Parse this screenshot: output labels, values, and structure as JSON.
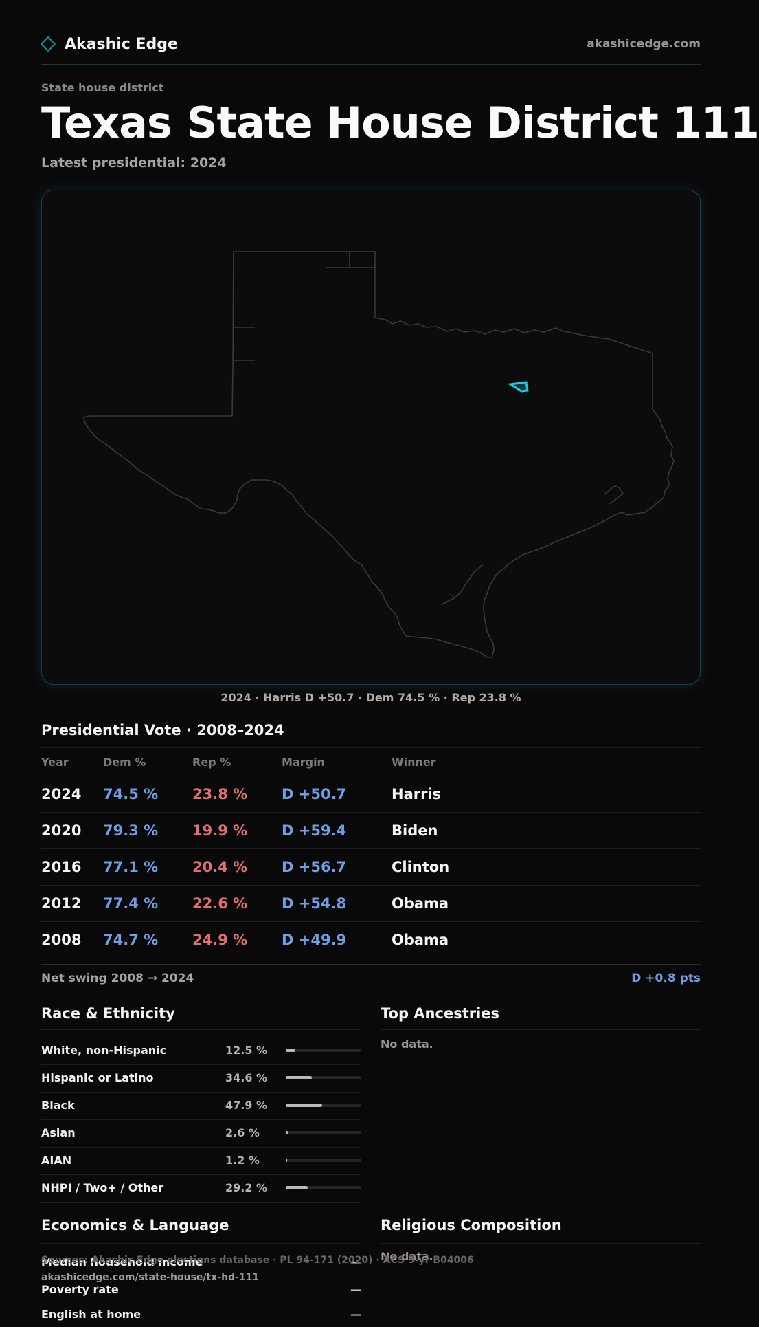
{
  "header": {
    "brand": "Akashic Edge",
    "site": "akashicedge.com"
  },
  "page": {
    "kicker": "State house district",
    "title_state": "Texas",
    "title_district": "State House District 111",
    "subtitle": "Latest presidential: 2024"
  },
  "map": {
    "caption": "2024 · Harris D +50.7 · Dem 74.5 % · Rep 23.8 %",
    "outline_color": "#3a3838",
    "highlight_color": "#1ec8e8"
  },
  "vote_table": {
    "title": "Presidential Vote · 2008–2024",
    "headers": [
      "Year",
      "Dem %",
      "Rep %",
      "Margin",
      "Winner"
    ],
    "rows": [
      {
        "year": "2024",
        "dem": "74.5 %",
        "rep": "23.8 %",
        "margin": "D +50.7",
        "winner": "Harris"
      },
      {
        "year": "2020",
        "dem": "79.3 %",
        "rep": "19.9 %",
        "margin": "D +59.4",
        "winner": "Biden"
      },
      {
        "year": "2016",
        "dem": "77.1 %",
        "rep": "20.4 %",
        "margin": "D +56.7",
        "winner": "Clinton"
      },
      {
        "year": "2012",
        "dem": "77.4 %",
        "rep": "22.6 %",
        "margin": "D +54.8",
        "winner": "Obama"
      },
      {
        "year": "2008",
        "dem": "74.7 %",
        "rep": "24.9 %",
        "margin": "D +49.9",
        "winner": "Obama"
      }
    ],
    "swing_label": "Net swing 2008 → 2024",
    "swing_value": "D +0.8 pts"
  },
  "race": {
    "title": "Race & Ethnicity",
    "rows": [
      {
        "label": "White, non-Hispanic",
        "pct": "12.5 %",
        "value": 12.5
      },
      {
        "label": "Hispanic or Latino",
        "pct": "34.6 %",
        "value": 34.6
      },
      {
        "label": "Black",
        "pct": "47.9 %",
        "value": 47.9
      },
      {
        "label": "Asian",
        "pct": "2.6 %",
        "value": 2.6
      },
      {
        "label": "AIAN",
        "pct": "1.2 %",
        "value": 1.2
      },
      {
        "label": "NHPI / Two+ / Other",
        "pct": "29.2 %",
        "value": 29.2
      }
    ]
  },
  "ancestry": {
    "title": "Top Ancestries",
    "empty": "No data."
  },
  "economics": {
    "title": "Economics & Language",
    "rows": [
      {
        "label": "Median household income",
        "value": "—"
      },
      {
        "label": "Poverty rate",
        "value": "—"
      },
      {
        "label": "English at home",
        "value": "—"
      }
    ]
  },
  "religion": {
    "title": "Religious Composition",
    "empty": "No data."
  },
  "footer": {
    "sources": "Sources: Akashic Edge elections database · PL 94-171 (2020) · ACS 5-yr B04006",
    "url": "akashicedge.com/state-house/tx-hd-111"
  }
}
